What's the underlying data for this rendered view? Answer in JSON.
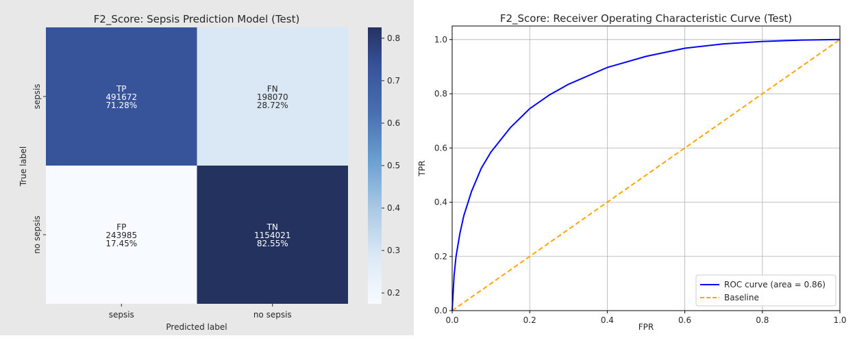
{
  "charts": {
    "confusion": {
      "title": "F2_Score: Sepsis Prediction Model (Test)",
      "xlabel": "Predicted label",
      "ylabel": "True label",
      "x_tick_labels": [
        "sepsis",
        "no sepsis"
      ],
      "y_tick_labels": [
        "sepsis",
        "no sepsis"
      ],
      "colorbar_ticks": [
        "0.2",
        "0.3",
        "0.4",
        "0.5",
        "0.6",
        "0.7",
        "0.8"
      ]
    },
    "roc": {
      "title": "F2_Score: Receiver Operating Characteristic Curve (Test)",
      "xlabel": "FPR",
      "ylabel": "TPR",
      "x_tick_labels": [
        "0.0",
        "0.2",
        "0.4",
        "0.6",
        "0.8",
        "1.0"
      ],
      "y_tick_labels": [
        "0.0",
        "0.2",
        "0.4",
        "0.6",
        "0.8",
        "1.0"
      ],
      "legend": [
        "ROC curve (area = 0.86)",
        "Baseline"
      ]
    }
  },
  "chart_data": [
    {
      "type": "heatmap",
      "rows": [
        "sepsis",
        "no sepsis"
      ],
      "columns": [
        "sepsis",
        "no sepsis"
      ],
      "cells": [
        {
          "row": 0,
          "col": 0,
          "label": "TP",
          "count": "491672",
          "percent": "71.28%",
          "value": 0.7128
        },
        {
          "row": 0,
          "col": 1,
          "label": "FN",
          "count": "198070",
          "percent": "28.72%",
          "value": 0.2872
        },
        {
          "row": 1,
          "col": 0,
          "label": "FP",
          "count": "243985",
          "percent": "17.45%",
          "value": 0.1745
        },
        {
          "row": 1,
          "col": 1,
          "label": "TN",
          "count": "1154021",
          "percent": "82.55%",
          "value": 0.8255
        }
      ],
      "colorbar": {
        "min": 0.1745,
        "max": 0.8255,
        "ticks": [
          0.2,
          0.3,
          0.4,
          0.5,
          0.6,
          0.7,
          0.8
        ]
      },
      "colormap": [
        "#f7fbff",
        "#dce9f6",
        "#a8c8e4",
        "#6a9fd0",
        "#4a6fb0",
        "#36539a",
        "#24325f"
      ]
    },
    {
      "type": "line",
      "xlim": [
        0,
        1
      ],
      "ylim": [
        0,
        1.05
      ],
      "grid": true,
      "legend_position": "bottom-right",
      "series": [
        {
          "name": "ROC curve (area = 0.86)",
          "color": "#0000ff",
          "style": "solid",
          "x": [
            0,
            0.005,
            0.01,
            0.02,
            0.03,
            0.05,
            0.075,
            0.1,
            0.15,
            0.2,
            0.25,
            0.3,
            0.4,
            0.5,
            0.6,
            0.7,
            0.8,
            0.9,
            1.0
          ],
          "y": [
            0,
            0.13,
            0.2,
            0.285,
            0.35,
            0.44,
            0.525,
            0.585,
            0.675,
            0.745,
            0.795,
            0.835,
            0.897,
            0.938,
            0.968,
            0.984,
            0.993,
            0.998,
            1.0
          ]
        },
        {
          "name": "Baseline",
          "color": "#ffa500",
          "style": "dashed",
          "x": [
            0,
            1
          ],
          "y": [
            0,
            1
          ]
        }
      ]
    }
  ]
}
